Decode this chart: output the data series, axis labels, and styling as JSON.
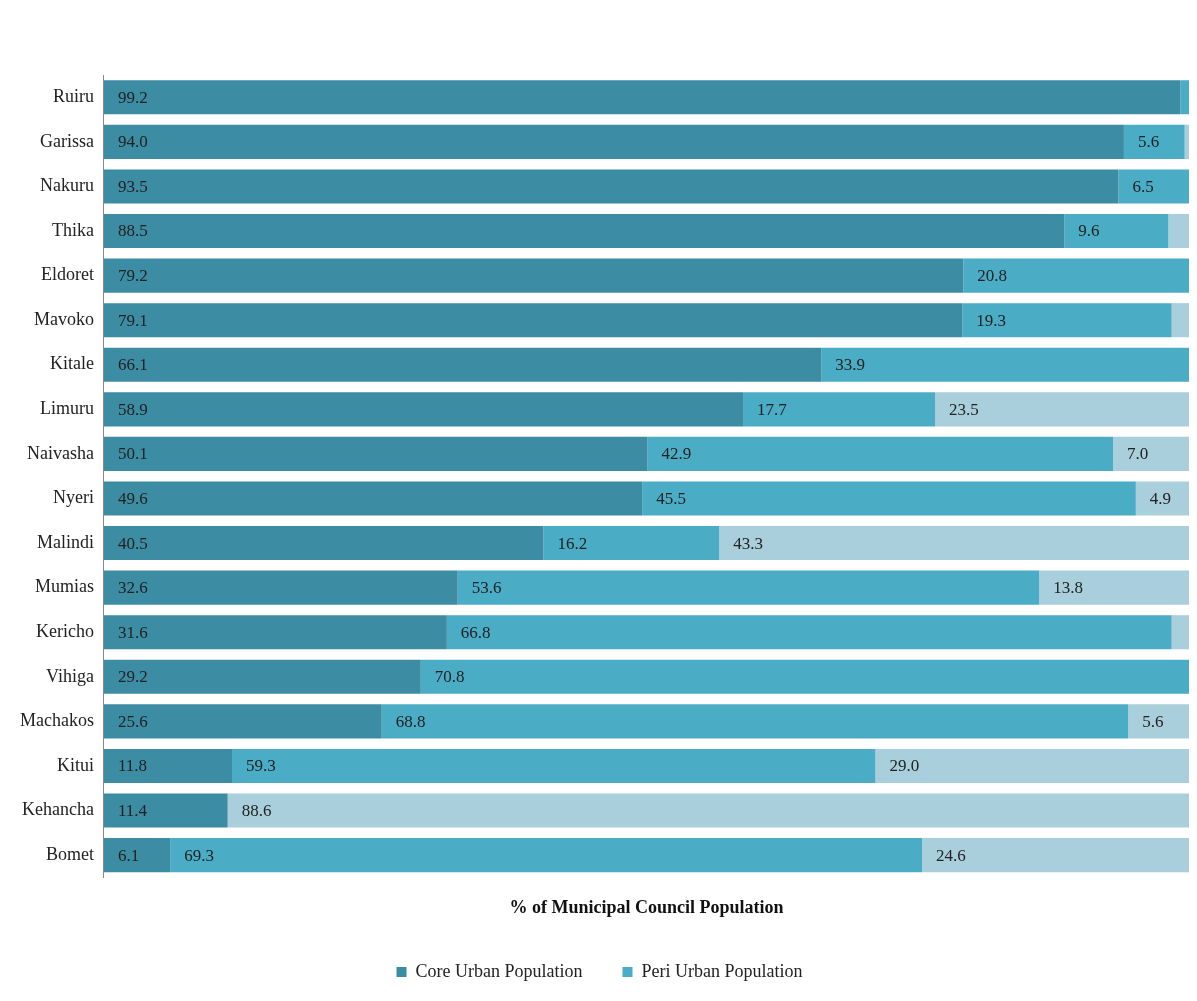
{
  "chart_data": {
    "type": "bar",
    "orientation": "horizontal",
    "stacked": true,
    "xlabel": "% of Municipal Council Population",
    "legend": "bottom",
    "grid": false,
    "tick_labels": "y",
    "xlim": [
      0,
      100
    ],
    "categories": [
      "Ruiru",
      "Garissa",
      "Nakuru",
      "Thika",
      "Eldoret",
      "Mavoko",
      "Kitale",
      "Limuru",
      "Naivasha",
      "Nyeri",
      "Malindi",
      "Mumias",
      "Kericho",
      "Vihiga",
      "Machakos",
      "Kitui",
      "Kehancha",
      "Bomet"
    ],
    "series": [
      {
        "name": "Core Urban Population",
        "color": "#3c8ca3",
        "values": [
          99.2,
          94.0,
          93.5,
          88.5,
          79.2,
          79.1,
          66.1,
          58.9,
          50.1,
          49.6,
          40.5,
          32.6,
          31.6,
          29.2,
          25.6,
          11.8,
          11.4,
          6.1
        ],
        "value_labels": [
          "99.2",
          "94.0",
          "93.5",
          "88.5",
          "79.2",
          "79.1",
          "66.1",
          "58.9",
          "50.1",
          "49.6",
          "40.5",
          "32.6",
          "31.6",
          "29.2",
          "25.6",
          "11.8",
          "11.4",
          "6.1"
        ]
      },
      {
        "name": "Peri Urban Population",
        "color": "#4bacc6",
        "values": [
          0.8,
          5.6,
          6.5,
          9.6,
          20.8,
          19.3,
          33.9,
          17.7,
          42.9,
          45.5,
          16.2,
          53.6,
          66.8,
          70.8,
          68.8,
          59.3,
          0,
          69.3
        ],
        "value_labels": [
          null,
          "5.6",
          "6.5",
          "9.6",
          "20.8",
          "19.3",
          "33.9",
          "17.7",
          "42.9",
          "45.5",
          "16.2",
          "53.6",
          "66.8",
          "70.8",
          "68.8",
          "59.3",
          null,
          "69.3"
        ]
      },
      {
        "color": "#a9cfdc",
        "values": [
          0,
          0.4,
          0,
          1.9,
          0,
          1.6,
          0,
          23.5,
          7.0,
          4.9,
          43.3,
          13.8,
          1.6,
          0,
          5.6,
          29.0,
          88.6,
          24.6
        ],
        "value_labels": [
          null,
          null,
          null,
          null,
          null,
          null,
          null,
          "23.5",
          "7.0",
          "4.9",
          "43.3",
          "13.8",
          null,
          null,
          "5.6",
          "29.0",
          "88.6",
          "24.6"
        ]
      }
    ]
  }
}
